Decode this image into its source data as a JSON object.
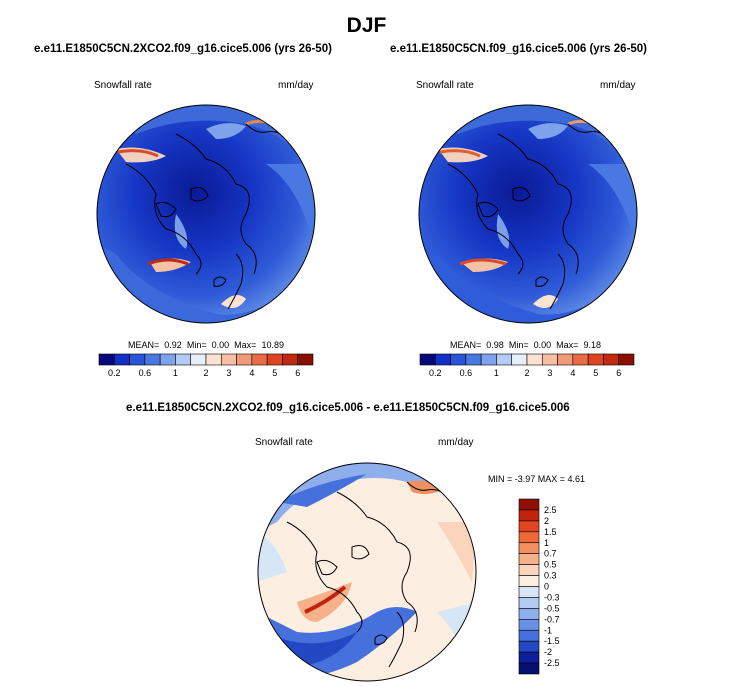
{
  "main_title": "DJF",
  "panels": [
    {
      "case": "e.e11.E1850C5CN.2XCO2.f09_g16.cice5.006 (yrs 26-50)",
      "variable": "Snowfall rate",
      "units": "mm/day",
      "stats": {
        "mean_label": "MEAN=",
        "mean": "0.92",
        "min_label": "Min=",
        "min": "0.00",
        "max_label": "Max=",
        "max": "10.89"
      }
    },
    {
      "case": "e.e11.E1850C5CN.f09_g16.cice5.006 (yrs 26-50)",
      "variable": "Snowfall rate",
      "units": "mm/day",
      "stats": {
        "mean_label": "MEAN=",
        "mean": "0.98",
        "min_label": "Min=",
        "min": "0.00",
        "max_label": "Max=",
        "max": "9.18"
      }
    }
  ],
  "abs_colorbar": {
    "tick_labels": [
      "0.2",
      "0.6",
      "1",
      "2",
      "3",
      "4",
      "5",
      "6"
    ],
    "colors": [
      "#08087a",
      "#1530c8",
      "#2a55d8",
      "#4a78e2",
      "#7ea2ec",
      "#b4ccf4",
      "#e6eef8",
      "#fbe2d2",
      "#f6bea2",
      "#f19a78",
      "#ea6c46",
      "#de4422",
      "#c22a10",
      "#8a1004"
    ]
  },
  "diff_panel": {
    "title": "e.e11.E1850C5CN.2XCO2.f09_g16.cice5.006 - e.e11.E1850C5CN.f09_g16.cice5.006",
    "variable": "Snowfall rate",
    "units": "mm/day",
    "minmax_text": "MIN = -3.97 MAX = 4.61",
    "colorbar_labels": [
      "2.5",
      "2",
      "1.5",
      "1",
      "0.7",
      "0.5",
      "0.3",
      "0",
      "-0.3",
      "-0.5",
      "-0.7",
      "-1",
      "-1.5",
      "-2",
      "-2.5"
    ],
    "colorbar_colors": [
      "#8e1006",
      "#c0240e",
      "#e04420",
      "#ee6838",
      "#f39060",
      "#f6b08a",
      "#fad4bc",
      "#fdeee2",
      "#d6e6f6",
      "#b4ccf2",
      "#8eaeec",
      "#6a90e4",
      "#4670dc",
      "#2248c4",
      "#0c1e9a",
      "#06106e"
    ]
  }
}
